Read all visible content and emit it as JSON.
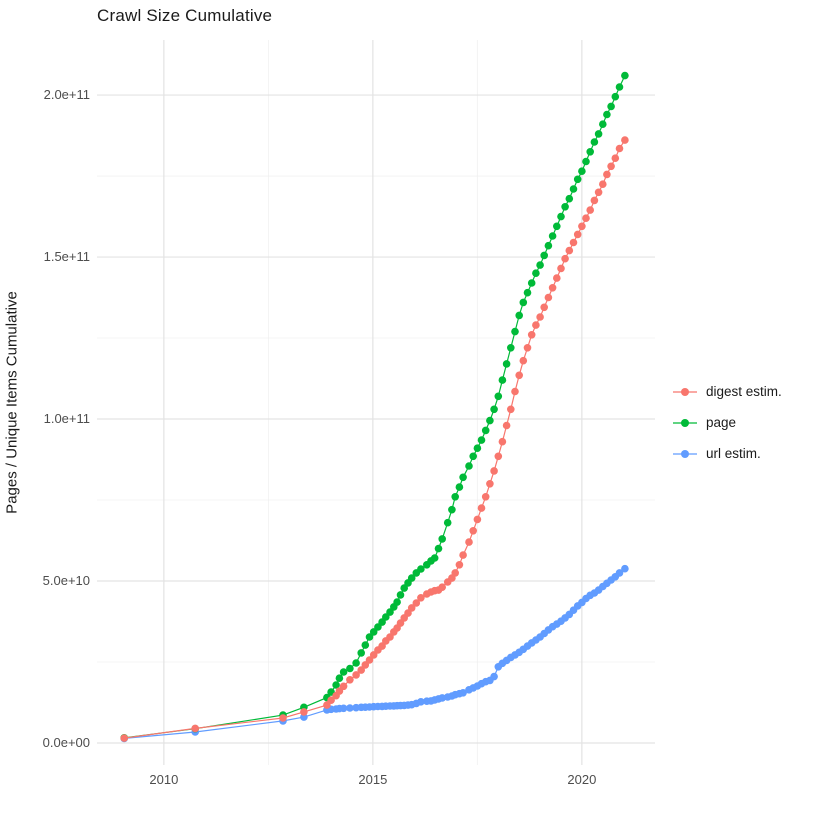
{
  "title": "Crawl Size Cumulative",
  "y_axis": {
    "label": "Pages / Unique Items Cumulative",
    "ticks": [
      {
        "label": "0.0e+00",
        "value_e9": 0
      },
      {
        "label": "5.0e+10",
        "value_e9": 50
      },
      {
        "label": "1.0e+11",
        "value_e9": 100
      },
      {
        "label": "1.5e+11",
        "value_e9": 150
      },
      {
        "label": "2.0e+11",
        "value_e9": 200
      }
    ],
    "minor_values_e9": [
      25,
      75,
      125,
      175
    ]
  },
  "x_axis": {
    "ticks": [
      {
        "label": "2010",
        "value": 2010
      },
      {
        "label": "2015",
        "value": 2015
      },
      {
        "label": "2020",
        "value": 2020
      }
    ],
    "minor_values": [
      2012.5,
      2017.5
    ]
  },
  "chart_data": {
    "type": "line",
    "title": "Crawl Size Cumulative",
    "xlabel": "",
    "ylabel": "Pages / Unique Items Cumulative",
    "unit_note": "values_e9 are cumulative counts in billions (1e9)",
    "grid": true,
    "legend_position": "right",
    "xlim": [
      2008.4,
      2021.75
    ],
    "ylim_e9": [
      -6.8,
      217
    ],
    "x": [
      2009.05,
      2010.75,
      2012.85,
      2013.35,
      2013.9,
      2014.0,
      2014.12,
      2014.2,
      2014.3,
      2014.45,
      2014.6,
      2014.72,
      2014.82,
      2014.92,
      2015.02,
      2015.12,
      2015.22,
      2015.31,
      2015.41,
      2015.5,
      2015.58,
      2015.66,
      2015.75,
      2015.84,
      2015.93,
      2016.04,
      2016.15,
      2016.29,
      2016.39,
      2016.48,
      2016.57,
      2016.66,
      2016.79,
      2016.89,
      2016.97,
      2017.07,
      2017.16,
      2017.3,
      2017.4,
      2017.5,
      2017.6,
      2017.7,
      2017.8,
      2017.9,
      2018.0,
      2018.1,
      2018.2,
      2018.3,
      2018.4,
      2018.5,
      2018.6,
      2018.7,
      2018.8,
      2018.9,
      2019.0,
      2019.1,
      2019.2,
      2019.3,
      2019.4,
      2019.5,
      2019.6,
      2019.7,
      2019.8,
      2019.9,
      2020.0,
      2020.1,
      2020.2,
      2020.3,
      2020.4,
      2020.5,
      2020.6,
      2020.7,
      2020.8,
      2020.9,
      2021.03
    ],
    "series": [
      {
        "name": "digest estim.",
        "color": "#F8766D",
        "values_e9": [
          1.5,
          4.5,
          7.7,
          9.6,
          11.7,
          13.2,
          14.6,
          16,
          17.5,
          19.5,
          21,
          22.5,
          24.1,
          25.6,
          27.2,
          28.7,
          29.9,
          31.5,
          32.7,
          34.3,
          35.5,
          37,
          38.6,
          40.1,
          41.7,
          43.2,
          44.8,
          46,
          46.6,
          47,
          47.2,
          48.1,
          49.7,
          50.9,
          52.5,
          55,
          58,
          62,
          65.5,
          69,
          72.5,
          76,
          80,
          84,
          88.5,
          93,
          98,
          103,
          108.5,
          113.5,
          118,
          122,
          126,
          129,
          131.5,
          134.5,
          137.5,
          140.5,
          143.5,
          146.5,
          149.5,
          152,
          154.5,
          157,
          159.5,
          162,
          164.5,
          167.5,
          170,
          172.5,
          175.5,
          178,
          180.5,
          183.5,
          186.1
        ]
      },
      {
        "name": "page",
        "color": "#00BA38",
        "values_e9": [
          1.6,
          4.4,
          8.6,
          11,
          14,
          15.7,
          17.9,
          20,
          21.9,
          23,
          24.7,
          27.8,
          30.2,
          32.7,
          34.3,
          35.8,
          37.3,
          38.9,
          40.4,
          42,
          43.5,
          45.7,
          47.8,
          49.4,
          50.9,
          52.5,
          53.7,
          55,
          56.2,
          57.1,
          60,
          63,
          68,
          72,
          76,
          79,
          82,
          85.5,
          88.5,
          91,
          93.5,
          96.5,
          99.5,
          103,
          107,
          112,
          117,
          122,
          127,
          132,
          136,
          139,
          142,
          145,
          147.5,
          150.5,
          153.5,
          156.5,
          159.5,
          162.5,
          165.5,
          168,
          171,
          174,
          176.5,
          179.5,
          182.5,
          185.5,
          188,
          191,
          194,
          196.5,
          199.5,
          202.5,
          206
        ]
      },
      {
        "name": "url estim.",
        "color": "#619CFF",
        "values_e9": [
          1.4,
          3.4,
          6.8,
          8.0,
          10.2,
          10.4,
          10.5,
          10.6,
          10.7,
          10.8,
          10.9,
          11.0,
          11.05,
          11.1,
          11.2,
          11.25,
          11.3,
          11.35,
          11.4,
          11.45,
          11.5,
          11.55,
          11.6,
          11.7,
          11.8,
          12.2,
          12.7,
          12.9,
          13.0,
          13.3,
          13.6,
          13.9,
          14.2,
          14.5,
          14.9,
          15.2,
          15.5,
          16.4,
          17.0,
          17.6,
          18.3,
          18.9,
          19.3,
          20.5,
          23.5,
          24.6,
          25.5,
          26.4,
          27.2,
          28.0,
          28.9,
          29.9,
          30.9,
          31.8,
          32.7,
          33.8,
          34.9,
          35.9,
          36.7,
          37.6,
          38.6,
          39.7,
          41.0,
          42.3,
          43.4,
          44.6,
          45.6,
          46.3,
          47.2,
          48.3,
          49.3,
          50.3,
          51.3,
          52.5,
          53.8
        ]
      }
    ]
  },
  "style": {
    "major_grid_color": "#e3e3e3",
    "minor_grid_color": "#f0f0f0",
    "tick_label_color": "#4d4d4d",
    "text_color": "#1b1b1b"
  }
}
